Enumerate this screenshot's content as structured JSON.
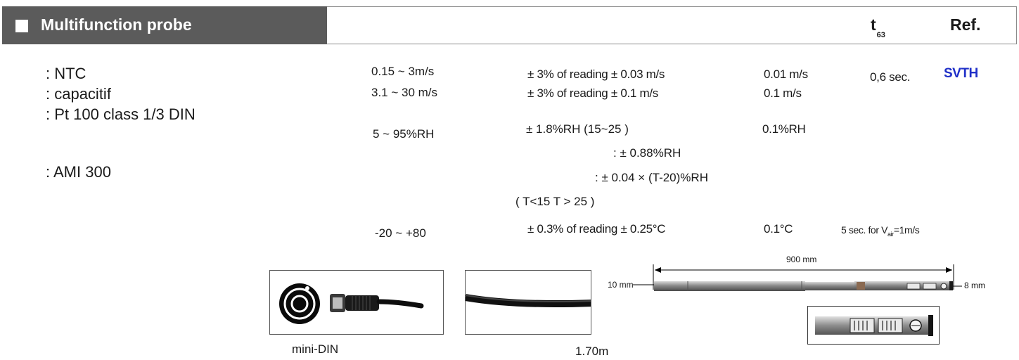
{
  "header": {
    "title": "Multifunction probe",
    "t63_main": "t",
    "t63_sub": "63",
    "ref": "Ref."
  },
  "sensors": [
    ": NTC",
    ": capacitif",
    ": Pt 100 class 1/3 DIN",
    ": AMI 300"
  ],
  "specs": {
    "velocity": {
      "range_low": "0.15 ~ 3m/s",
      "range_high": "3.1 ~ 30 m/s",
      "accuracy_low": "± 3% of reading ± 0.03 m/s",
      "accuracy_high": "± 3% of reading ± 0.1 m/s",
      "resolution_low": "0.01 m/s",
      "resolution_high": "0.1 m/s",
      "response": "0,6 sec."
    },
    "humidity": {
      "range": "5 ~ 95%RH",
      "accuracy": "± 1.8%RH (15~25  )",
      "accuracy_line2": ":  ± 0.88%RH",
      "accuracy_line3": ":  ± 0.04 × (T-20)%RH",
      "accuracy_line4": "( T<15           T > 25   )",
      "resolution": "0.1%RH"
    },
    "temperature": {
      "range": "-20 ~ +80",
      "accuracy": "± 0.3% of reading  ± 0.25°C",
      "resolution": "0.1°C",
      "response_prefix": "5 sec. for V",
      "response_sub": "air",
      "response_suffix": "=1m/s"
    },
    "ref_code": "SVTH"
  },
  "images": {
    "connector_caption": "mini-DIN",
    "cable_caption": "1.70m",
    "probe_length": "900 mm",
    "probe_dia_left": "10 mm",
    "probe_dia_right": "8 mm"
  }
}
